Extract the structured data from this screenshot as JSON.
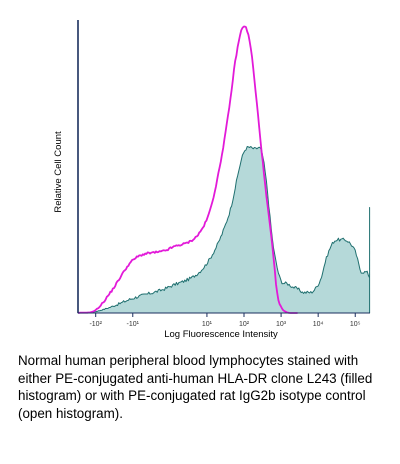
{
  "chart_data": {
    "type": "area",
    "title": "",
    "xlabel": "Log Fluorescence Intensity",
    "ylabel": "Relative Cell Count",
    "xscale": "biexponential",
    "x_tick_labels": [
      "-10²",
      "-10¹",
      "10¹",
      "10²",
      "10³",
      "10⁴",
      "10⁵"
    ],
    "x_tick_values": [
      -100,
      -10,
      10,
      100,
      1000,
      10000,
      100000
    ],
    "xlim": [
      -300,
      250000
    ],
    "ylim": [
      0,
      100
    ],
    "grid": false,
    "legend": "none",
    "series": [
      {
        "style": "filled",
        "color": "#1f6f6f",
        "fill": "#b5d9d9",
        "x": [
          -300,
          -100,
          -40,
          -10,
          0,
          10,
          40,
          100,
          200,
          300,
          400,
          500,
          600,
          800,
          1000,
          1500,
          2000,
          3000,
          4000,
          6000,
          8000,
          12000,
          16000,
          25000,
          35000,
          50000,
          70000,
          100000,
          150000,
          200000,
          250000
        ],
        "y": [
          0,
          0.5,
          2,
          5,
          9,
          17,
          34,
          55,
          56,
          55,
          45,
          33,
          24,
          15,
          11,
          10,
          9,
          8,
          7,
          7,
          8,
          12,
          18,
          24,
          25,
          25,
          24,
          21,
          14,
          14,
          12
        ]
      },
      {
        "style": "open",
        "color": "#e21ad8",
        "x": [
          -300,
          -100,
          -40,
          -10,
          0,
          10,
          20,
          40,
          60,
          100,
          150,
          200,
          300,
          400,
          500,
          600,
          800,
          1000,
          1300,
          1800,
          3000
        ],
        "y": [
          0,
          1,
          7,
          18,
          22,
          32,
          47,
          70,
          87,
          98,
          91,
          77,
          55,
          40,
          30,
          21,
          6,
          2,
          0.5,
          0,
          0
        ]
      }
    ]
  },
  "caption": "Normal human peripheral blood lymphocytes stained with either PE-conjugated anti-human HLA-DR clone L243 (filled histogram) or with PE-conjugated rat IgG2b isotype control (open histogram)."
}
